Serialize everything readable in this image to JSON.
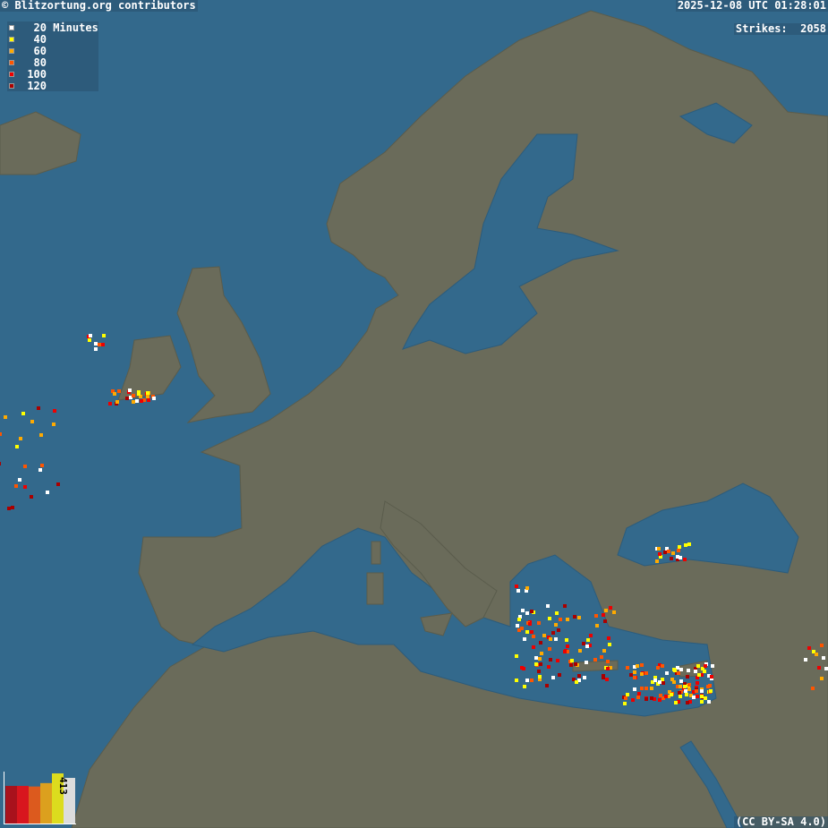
{
  "header": {
    "credit": "© Blitzortung.org contributors",
    "timestamp": "2025-12-08 UTC 01:28:01",
    "strikes_label": "Strikes:",
    "strikes_count": "2058"
  },
  "legend": {
    "unit": "Minutes",
    "items": [
      {
        "value": "20",
        "color": "#ffffff"
      },
      {
        "value": "40",
        "color": "#ffff00"
      },
      {
        "value": "60",
        "color": "#ffaa00"
      },
      {
        "value": "80",
        "color": "#ff5500"
      },
      {
        "value": "100",
        "color": "#ee0000"
      },
      {
        "value": "120",
        "color": "#aa0000"
      }
    ]
  },
  "histogram": {
    "label": "413",
    "bars": [
      {
        "value": 310,
        "color": "#a8121c"
      },
      {
        "value": 310,
        "color": "#d8161e"
      },
      {
        "value": 305,
        "color": "#dc5a1e"
      },
      {
        "value": 333,
        "color": "#dca01e"
      },
      {
        "value": 413,
        "color": "#dcdc1e"
      },
      {
        "value": 376,
        "color": "#dcdcdc"
      }
    ]
  },
  "colors": {
    "sea": "#33698c",
    "land": "#6a6b5a",
    "border": "#c8c8c8"
  },
  "footer": {
    "license": "(CC BY-SA 4.0)"
  }
}
